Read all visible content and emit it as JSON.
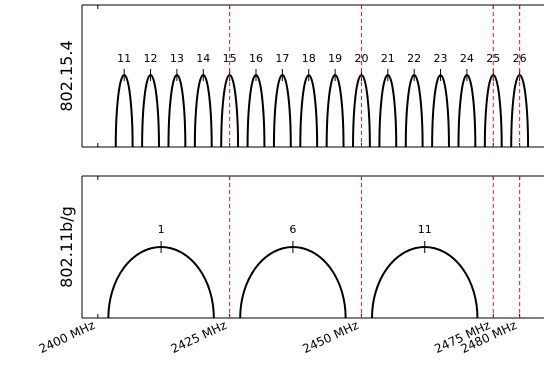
{
  "chart_data": [
    {
      "type": "line",
      "ylabel": "802.15.4",
      "channels": [
        "11",
        "12",
        "13",
        "14",
        "15",
        "16",
        "17",
        "18",
        "19",
        "20",
        "21",
        "22",
        "23",
        "24",
        "25",
        "26"
      ],
      "center_mhz": [
        2405,
        2410,
        2415,
        2420,
        2425,
        2430,
        2435,
        2440,
        2445,
        2450,
        2455,
        2460,
        2465,
        2470,
        2475,
        2480
      ],
      "channel_width_mhz": 2,
      "xlim": [
        2397,
        2485
      ],
      "grid": false
    },
    {
      "type": "line",
      "ylabel": "802.11b/g",
      "channels": [
        "1",
        "6",
        "11"
      ],
      "center_mhz": [
        2412,
        2437,
        2462
      ],
      "channel_width_mhz": 20,
      "xlim": [
        2397,
        2485
      ],
      "grid": false
    }
  ],
  "reference_lines_mhz": [
    2425,
    2450,
    2475,
    2480
  ],
  "x_ticks": [
    {
      "value": 2400,
      "label": "2400 MHz"
    },
    {
      "value": 2425,
      "label": "2425 MHz"
    },
    {
      "value": 2450,
      "label": "2450 MHz"
    },
    {
      "value": 2475,
      "label": "2475 MHz"
    },
    {
      "value": 2480,
      "label": "2480 MHz"
    }
  ],
  "colors": {
    "curve": "#000000",
    "reference_line": "#e31a1c",
    "axes": "#000000"
  }
}
